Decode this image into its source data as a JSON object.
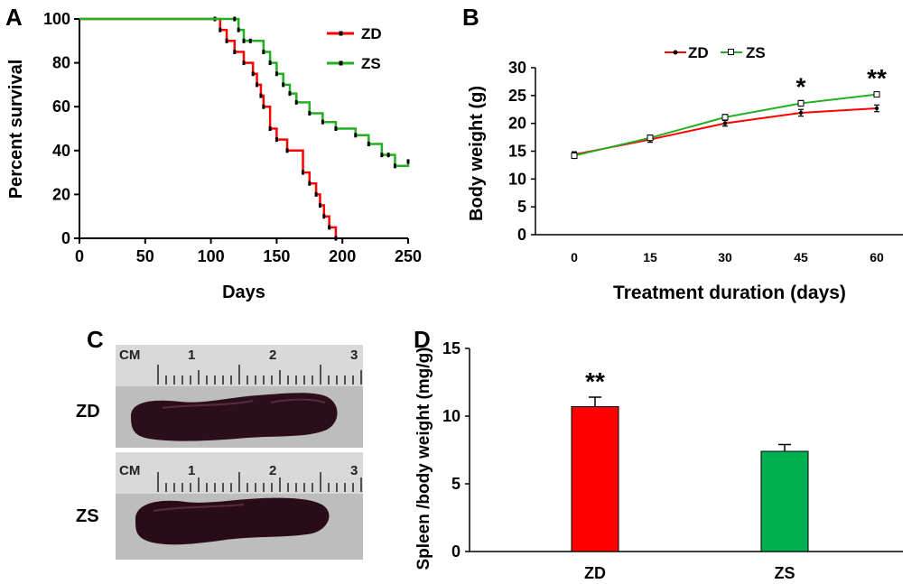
{
  "panels": {
    "a": "A",
    "b": "B",
    "c": "C",
    "d": "D"
  },
  "colors": {
    "zd": "#ff0000",
    "zs": "#22b022",
    "zs_bar": "#00b050"
  },
  "chart_data": [
    {
      "id": "A",
      "type": "line",
      "subtype": "kaplan-meier-step",
      "xlabel": "Days",
      "ylabel": "Percent survival",
      "xlim": [
        0,
        250
      ],
      "ylim": [
        0,
        100
      ],
      "xticks": [
        0,
        50,
        100,
        150,
        200,
        250
      ],
      "yticks": [
        0,
        20,
        40,
        60,
        80,
        100
      ],
      "legend": [
        "ZD",
        "ZS"
      ],
      "legend_position": "top-right",
      "series": [
        {
          "name": "ZD",
          "x": [
            0,
            103,
            107,
            112,
            118,
            125,
            132,
            135,
            138,
            140,
            145,
            150,
            158,
            170,
            175,
            180,
            183,
            186,
            190,
            195
          ],
          "y": [
            100,
            100,
            95,
            90,
            85,
            80,
            75,
            70,
            65,
            60,
            50,
            45,
            40,
            30,
            25,
            20,
            15,
            10,
            5,
            0
          ]
        },
        {
          "name": "ZS",
          "x": [
            0,
            118,
            121,
            125,
            130,
            140,
            145,
            150,
            155,
            160,
            165,
            175,
            185,
            195,
            210,
            220,
            230,
            235,
            240,
            250
          ],
          "y": [
            100,
            100,
            95,
            90,
            90,
            85,
            80,
            75,
            70,
            66,
            62,
            57,
            53,
            50,
            47,
            43,
            38,
            38,
            33,
            35
          ]
        }
      ]
    },
    {
      "id": "B",
      "type": "line",
      "xlabel": "Treatment duration (days)",
      "ylabel": "Body weight (g)",
      "xlim": [
        0,
        60
      ],
      "ylim": [
        0,
        30
      ],
      "categories": [
        "0",
        "15",
        "30",
        "45",
        "60"
      ],
      "yticks": [
        0,
        5,
        10,
        15,
        20,
        25,
        30
      ],
      "legend": [
        "ZD",
        "ZS"
      ],
      "legend_position": "top",
      "series": [
        {
          "name": "ZD",
          "values": [
            14.4,
            17.1,
            20.0,
            21.9,
            22.7
          ],
          "errors": [
            0.5,
            0.5,
            0.5,
            0.6,
            0.6
          ]
        },
        {
          "name": "ZS",
          "values": [
            14.2,
            17.4,
            21.1,
            23.6,
            25.2
          ],
          "errors": [
            0.5,
            0.5,
            0.5,
            0.5,
            0.4
          ]
        }
      ],
      "annotations": [
        {
          "x": "45",
          "text": "*"
        },
        {
          "x": "60",
          "text": "**"
        }
      ]
    },
    {
      "id": "D",
      "type": "bar",
      "ylabel": "Spleen /body weight (mg/g)",
      "ylim": [
        0,
        15
      ],
      "yticks": [
        0,
        5,
        10,
        15
      ],
      "categories": [
        "ZD",
        "ZS"
      ],
      "values": [
        10.7,
        7.4
      ],
      "errors": [
        0.7,
        0.5
      ],
      "annotations": [
        {
          "x": "ZD",
          "text": "**"
        }
      ]
    }
  ],
  "panel_c": {
    "ruler_unit": "CM",
    "ruler_numbers": [
      "1",
      "2",
      "3"
    ],
    "rows": [
      "ZD",
      "ZS"
    ]
  }
}
